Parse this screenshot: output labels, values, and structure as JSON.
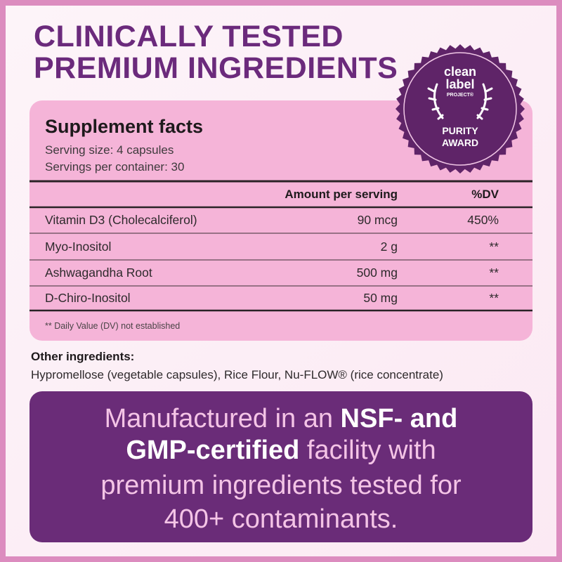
{
  "header": {
    "title_lines": [
      "CLINICALLY TESTED",
      "PREMIUM INGREDIENTS"
    ]
  },
  "badge": {
    "lines": [
      "clean",
      "label",
      "PROJECT®",
      "PURITY",
      "AWARD"
    ]
  },
  "facts": {
    "title": "Supplement facts",
    "serving": [
      "Serving size: 4 capsules",
      "Servings per container: 30"
    ],
    "header": {
      "amount": "Amount per serving",
      "dv": "%DV"
    },
    "rows": [
      [
        "Vitamin D3 (Cholecalciferol)",
        "90 mcg",
        "450%"
      ],
      [
        "Myo-Inositol",
        "2 g",
        "**"
      ],
      [
        "Ashwagandha Root",
        "500 mg",
        "**"
      ],
      [
        "D-Chiro-Inositol",
        "50 mg",
        "**"
      ]
    ],
    "footnote": "** Daily Value (DV) not established"
  },
  "other": {
    "heading": "Other ingredients:",
    "text": "Hypromellose (vegetable capsules), Rice Flour, Nu-FLOW® (rice concentrate)"
  },
  "banner": {
    "lines": [
      [
        {
          "text": "Manufactured in an ",
          "bold": false
        },
        {
          "text": "NSF- and",
          "bold": true
        }
      ],
      [
        {
          "text": "GMP-certified",
          "bold": true
        },
        {
          "text": " facility with",
          "bold": false
        }
      ],
      [
        {
          "text": "premium ingredients tested for",
          "bold": false
        }
      ],
      [
        {
          "text": "400+ contaminants.",
          "bold": false
        }
      ]
    ]
  }
}
